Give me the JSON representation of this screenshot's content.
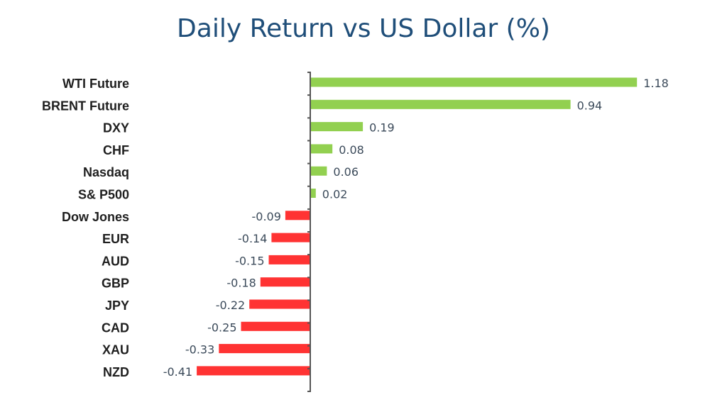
{
  "chart_data": {
    "type": "bar",
    "orientation": "horizontal",
    "title": "Daily Return vs US Dollar (%)",
    "xlabel": "",
    "ylabel": "",
    "categories": [
      "WTI Future",
      "BRENT Future",
      "DXY",
      "CHF",
      "Nasdaq",
      "S& P500",
      "Dow Jones",
      "EUR",
      "AUD",
      "GBP",
      "JPY",
      "CAD",
      "XAU",
      "NZD"
    ],
    "values": [
      1.18,
      0.94,
      0.19,
      0.08,
      0.06,
      0.02,
      -0.09,
      -0.14,
      -0.15,
      -0.18,
      -0.22,
      -0.25,
      -0.33,
      -0.41
    ],
    "value_labels": [
      "1.18",
      "0.94",
      "0.19",
      "0.08",
      "0.06",
      "0.02",
      "-0.09",
      "-0.14",
      "-0.15",
      "-0.18",
      "-0.22",
      "-0.25",
      "-0.33",
      "-0.41"
    ],
    "xlim": [
      -0.41,
      1.18
    ],
    "colors": {
      "positive": "#92d050",
      "negative": "#ff3333",
      "title": "#1f4e79",
      "axis": "#555555"
    },
    "grid": false,
    "legend": false
  }
}
